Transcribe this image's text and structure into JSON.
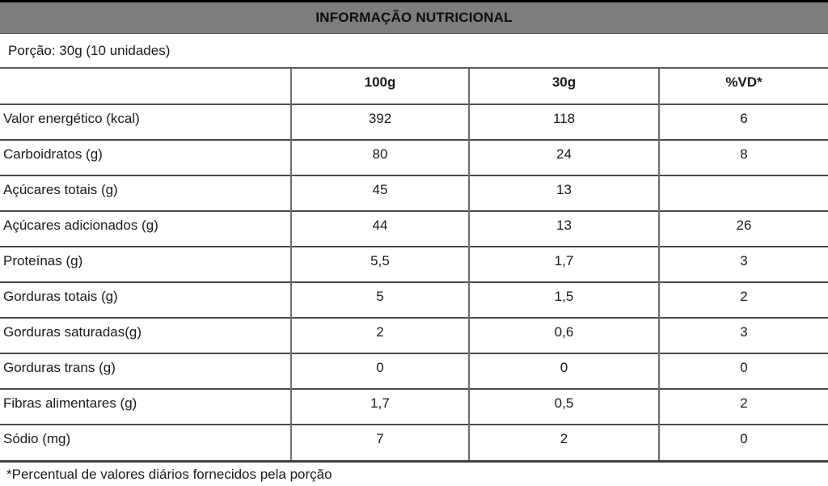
{
  "title": "INFORMAÇÃO NUTRICIONAL",
  "portion_line": "Porção: 30g (10 unidades)",
  "footnote": "*Percentual de valores diários fornecidos pela porção",
  "colors": {
    "title_bar_bg": "#7d7d7d",
    "border": "#4a4a4a",
    "text": "#1a1a1a"
  },
  "chart_data": {
    "type": "table",
    "title": "INFORMAÇÃO NUTRICIONAL",
    "col_headers": [
      "",
      "100g",
      "30g",
      "%VD*"
    ],
    "rows": [
      {
        "label": "Valor energético (kcal)",
        "per100g": "392",
        "per30g": "118",
        "vd": "6"
      },
      {
        "label": "Carboidratos (g)",
        "per100g": "80",
        "per30g": "24",
        "vd": "8"
      },
      {
        "label": "Açúcares totais (g)",
        "per100g": "45",
        "per30g": "13",
        "vd": ""
      },
      {
        "label": "Açúcares adicionados (g)",
        "per100g": "44",
        "per30g": "13",
        "vd": "26"
      },
      {
        "label": "Proteínas (g)",
        "per100g": "5,5",
        "per30g": "1,7",
        "vd": "3"
      },
      {
        "label": "Gorduras totais (g)",
        "per100g": "5",
        "per30g": "1,5",
        "vd": "2"
      },
      {
        "label": "Gorduras saturadas(g)",
        "per100g": "2",
        "per30g": "0,6",
        "vd": "3"
      },
      {
        "label": "Gorduras trans (g)",
        "per100g": "0",
        "per30g": "0",
        "vd": "0"
      },
      {
        "label": "Fibras alimentares (g)",
        "per100g": "1,7",
        "per30g": "0,5",
        "vd": "2"
      },
      {
        "label": "Sódio (mg)",
        "per100g": "7",
        "per30g": "2",
        "vd": "0"
      }
    ]
  }
}
